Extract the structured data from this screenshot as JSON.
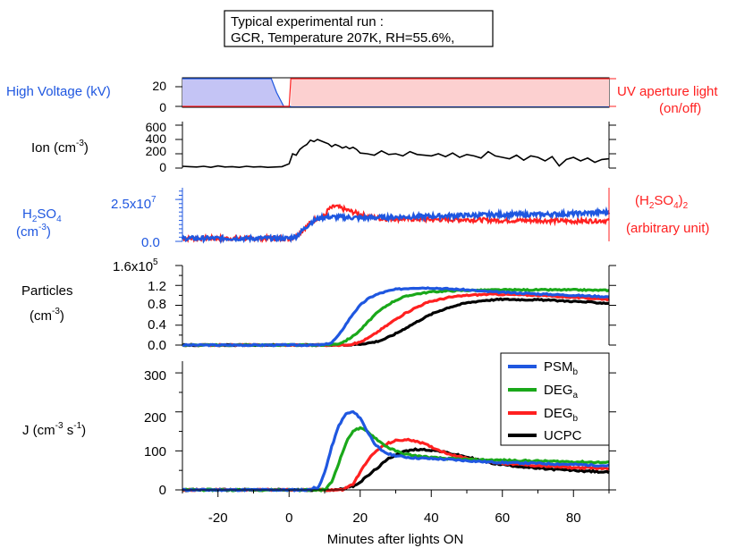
{
  "header_box": {
    "line1": "Typical experimental run :",
    "line2": "GCR, Temperature 207K, RH=55.6%,"
  },
  "x_axis": {
    "label": "Minutes after lights ON",
    "range": [
      -30,
      90
    ],
    "ticks": [
      -20,
      0,
      20,
      40,
      60,
      80
    ]
  },
  "colors": {
    "blue": "#1f57e0",
    "red": "#ff2020",
    "green": "#1aa81a",
    "black": "#000000",
    "hv_fill": "#c4c4f5",
    "uv_fill": "#fcd0d0"
  },
  "panels": {
    "hv": {
      "left_label": "High Voltage (kV)",
      "right_label_1": "UV aperture light",
      "right_label_2": "(on/off)",
      "ticks": [
        "20",
        "0"
      ]
    },
    "ion": {
      "label_main": "Ion (cm",
      "label_sup": "-3",
      "label_close": ")",
      "ticks": [
        "600",
        "400",
        "200",
        "0"
      ]
    },
    "h2so4": {
      "left_l1_a": "H",
      "left_l1_sub1": "2",
      "left_l1_b": "SO",
      "left_l1_sub2": "4",
      "left_l2_a": "(cm",
      "left_l2_sup": "-3",
      "left_l2_b": ")",
      "right_l1_a": "(H",
      "right_l1_sub1": "2",
      "right_l1_b": "SO",
      "right_l1_sub2": "4",
      "right_l1_c": ")",
      "right_l1_sub3": "2",
      "right_l2": "(arbitrary unit)",
      "tick_top": "2.5x10",
      "tick_top_exp": "7",
      "tick_bottom": "0.0"
    },
    "particles": {
      "label_1": "Particles",
      "label_2a": "(cm",
      "label_2sup": "-3",
      "label_2b": ")",
      "tick_top": "1.6x10",
      "tick_top_exp": "5",
      "ticks": [
        "1.2",
        "0.8",
        "0.4",
        "0.0"
      ]
    },
    "j": {
      "label_a": "J (cm",
      "label_sup1": "-3",
      "label_b": " s",
      "label_sup2": "-1",
      "label_c": ")",
      "ticks": [
        "300",
        "200",
        "100",
        "0"
      ]
    }
  },
  "legend": {
    "psm": "PSM",
    "psm_sub": "b",
    "dega": "DEG",
    "dega_sub": "a",
    "degb": "DEG",
    "degb_sub": "b",
    "ucpc": "UCPC"
  },
  "chart_data": [
    {
      "type": "line",
      "name": "high-voltage-and-uv",
      "series": [
        {
          "name": "High Voltage (kV)",
          "unit": "kV",
          "x": [
            -30,
            -5,
            -3.5,
            -1.5,
            0,
            90
          ],
          "y": [
            30,
            30,
            15,
            0,
            0,
            0
          ]
        },
        {
          "name": "UV aperture light",
          "unit": "on/off",
          "x": [
            -30,
            0,
            0.5,
            90
          ],
          "y": [
            0,
            0,
            1,
            1
          ]
        }
      ],
      "ylim": [
        0,
        30
      ]
    },
    {
      "type": "line",
      "name": "ion",
      "ylabel": "Ion (cm-3)",
      "ylim": [
        0,
        650
      ],
      "series": [
        {
          "name": "Ion",
          "x": [
            -30,
            -28,
            -26,
            -24,
            -22,
            -20,
            -18,
            -16,
            -14,
            -12,
            -10,
            -8,
            -6,
            -4,
            -2,
            0,
            1,
            2,
            3,
            4,
            5,
            6,
            7,
            8,
            9,
            10,
            11,
            12,
            13,
            14,
            15,
            16,
            17,
            18,
            19,
            20,
            22,
            24,
            26,
            28,
            30,
            32,
            34,
            36,
            38,
            40,
            42,
            44,
            46,
            48,
            50,
            52,
            54,
            56,
            58,
            60,
            62,
            64,
            66,
            68,
            70,
            72,
            74,
            76,
            78,
            80,
            82,
            84,
            86,
            88,
            90
          ],
          "y": [
            25,
            20,
            15,
            25,
            10,
            30,
            15,
            20,
            10,
            25,
            15,
            20,
            10,
            15,
            20,
            60,
            200,
            180,
            260,
            300,
            330,
            390,
            370,
            400,
            380,
            360,
            340,
            300,
            330,
            310,
            280,
            300,
            270,
            290,
            260,
            210,
            200,
            180,
            240,
            190,
            200,
            170,
            230,
            190,
            180,
            170,
            200,
            160,
            210,
            150,
            190,
            170,
            140,
            230,
            170,
            150,
            130,
            180,
            110,
            170,
            150,
            100,
            160,
            30,
            120,
            150,
            100,
            140,
            80,
            120,
            130
          ]
        }
      ]
    },
    {
      "type": "line",
      "name": "h2so4",
      "ylabel": "H2SO4 (cm-3)",
      "ylim": [
        0,
        32000000.0
      ],
      "y_ticks": [
        0,
        25000000.0
      ],
      "series": [
        {
          "name": "H2SO4",
          "x": [
            -30,
            0,
            2,
            4,
            6,
            8,
            10,
            14,
            20,
            30,
            40,
            50,
            60,
            70,
            80,
            90
          ],
          "y": [
            1800000.0,
            1800000.0,
            3000000.0,
            7000000.0,
            11000000.0,
            13500000.0,
            14500000.0,
            14500000.0,
            14000000.0,
            14500000.0,
            15000000.0,
            15500000.0,
            16000000.0,
            16000000.0,
            16500000.0,
            17500000.0
          ]
        },
        {
          "name": "(H2SO4)2",
          "unit": "arbitrary unit",
          "x": [
            -30,
            0,
            2,
            4,
            6,
            8,
            10,
            11,
            13,
            15,
            18,
            22,
            26,
            30,
            40,
            50,
            60,
            70,
            80,
            90
          ],
          "y": [
            1800000.0,
            1800000.0,
            3000000.0,
            7000000.0,
            11000000.0,
            14000000.0,
            15000000.0,
            19000000.0,
            21000000.0,
            19500000.0,
            17500000.0,
            15000000.0,
            13500000.0,
            13500000.0,
            13000000.0,
            13000000.0,
            12500000.0,
            12500000.0,
            12000000.0,
            12500000.0
          ]
        }
      ]
    },
    {
      "type": "line",
      "name": "particles",
      "ylabel": "Particles (cm-3)",
      "ylim": [
        0,
        160000.0
      ],
      "y_ticks": [
        0,
        40000.0,
        80000.0,
        120000.0,
        160000.0
      ],
      "series": [
        {
          "name": "PSMb",
          "x": [
            -30,
            8,
            10,
            12,
            14,
            16,
            18,
            20,
            22,
            24,
            26,
            28,
            30,
            35,
            40,
            45,
            50,
            55,
            60,
            70,
            80,
            90
          ],
          "y": [
            0,
            0,
            1000,
            5000,
            20000,
            42000,
            63000,
            80000,
            92000,
            100000,
            105000,
            109000,
            112000,
            115000,
            115000,
            113000,
            111000,
            108000,
            106000,
            103000,
            100000,
            97000
          ]
        },
        {
          "name": "DEGa",
          "x": [
            -30,
            10,
            12,
            14,
            16,
            18,
            20,
            22,
            24,
            26,
            28,
            30,
            32,
            35,
            40,
            45,
            50,
            60,
            70,
            80,
            90
          ],
          "y": [
            0,
            0,
            1000,
            3000,
            9000,
            18000,
            30000,
            45000,
            60000,
            72000,
            82000,
            90000,
            96000,
            102000,
            107000,
            109000,
            110000,
            111000,
            111000,
            111000,
            110000
          ]
        },
        {
          "name": "DEGb",
          "x": [
            -30,
            15,
            18,
            20,
            22,
            24,
            26,
            28,
            30,
            32,
            35,
            38,
            40,
            45,
            50,
            55,
            60,
            70,
            80,
            90
          ],
          "y": [
            0,
            0,
            2000,
            6000,
            13000,
            22000,
            32000,
            42000,
            52000,
            61000,
            73000,
            83000,
            88000,
            96000,
            100000,
            102000,
            102000,
            100000,
            96000,
            92000
          ]
        },
        {
          "name": "UCPC",
          "x": [
            -30,
            16,
            20,
            24,
            26,
            28,
            30,
            32,
            34,
            36,
            38,
            40,
            42,
            45,
            50,
            55,
            60,
            70,
            80,
            90
          ],
          "y": [
            0,
            0,
            2000,
            6000,
            10000,
            16000,
            23000,
            31000,
            39000,
            47000,
            55000,
            62000,
            68000,
            76000,
            85000,
            90000,
            92000,
            91000,
            88000,
            84000
          ]
        }
      ]
    },
    {
      "type": "line",
      "name": "j",
      "ylabel": "J (cm-3 s-1)",
      "ylim": [
        0,
        330
      ],
      "y_ticks": [
        0,
        100,
        200,
        300
      ],
      "series": [
        {
          "name": "PSMb",
          "x": [
            -30,
            6,
            7,
            8,
            9,
            10,
            12,
            14,
            16,
            18,
            20,
            22,
            24,
            26,
            28,
            30,
            32,
            35,
            40,
            45,
            50,
            55,
            60,
            70,
            80,
            90
          ],
          "y": [
            0,
            0,
            8,
            2,
            20,
            45,
            110,
            165,
            195,
            200,
            185,
            150,
            120,
            100,
            92,
            88,
            85,
            82,
            80,
            78,
            75,
            72,
            70,
            68,
            65,
            62
          ]
        },
        {
          "name": "DEGa",
          "x": [
            -30,
            10,
            12,
            14,
            16,
            18,
            20,
            22,
            24,
            26,
            28,
            30,
            32,
            35,
            40,
            45,
            50,
            60,
            70,
            80,
            90
          ],
          "y": [
            0,
            0,
            20,
            70,
            120,
            152,
            158,
            150,
            135,
            120,
            108,
            100,
            93,
            88,
            83,
            80,
            78,
            76,
            74,
            72,
            70
          ]
        },
        {
          "name": "DEGb",
          "x": [
            -30,
            15,
            18,
            20,
            22,
            24,
            26,
            28,
            30,
            32,
            34,
            36,
            38,
            40,
            44,
            48,
            52,
            56,
            60,
            70,
            80,
            90
          ],
          "y": [
            0,
            0,
            15,
            45,
            75,
            95,
            110,
            120,
            126,
            128,
            128,
            125,
            118,
            110,
            95,
            85,
            78,
            72,
            68,
            62,
            57,
            55
          ]
        },
        {
          "name": "UCPC",
          "x": [
            -30,
            13,
            16,
            18,
            20,
            22,
            24,
            26,
            28,
            30,
            32,
            36,
            40,
            42,
            44,
            48,
            52,
            56,
            60,
            70,
            80,
            90
          ],
          "y": [
            0,
            0,
            5,
            10,
            20,
            35,
            50,
            65,
            80,
            90,
            98,
            104,
            102,
            100,
            96,
            88,
            80,
            70,
            65,
            55,
            50,
            45
          ]
        }
      ]
    }
  ]
}
